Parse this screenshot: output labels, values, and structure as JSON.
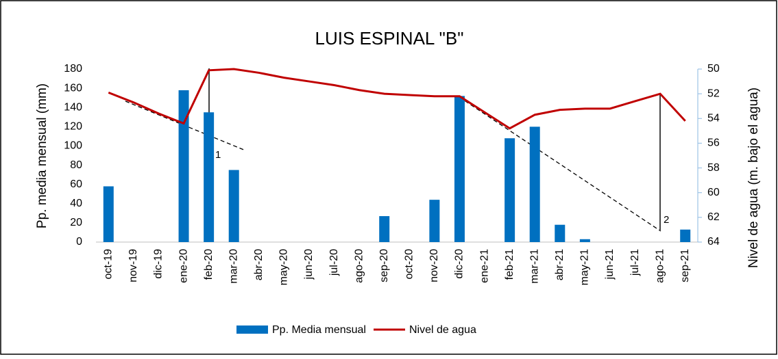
{
  "chart_data": {
    "type": "bar_line",
    "title": "LUIS ESPINAL \"B\"",
    "y_label": "Pp. media mensual (mm)",
    "y2_label": "Nivel de agua (m. bajo el agua)",
    "categories": [
      "oct-19",
      "nov-19",
      "dic-19",
      "ene-20",
      "feb-20",
      "mar-20",
      "abr-20",
      "may-20",
      "jun-20",
      "jul-20",
      "ago-20",
      "sep-20",
      "oct-20",
      "nov-20",
      "dic-20",
      "ene-21",
      "feb-21",
      "mar-21",
      "abr-21",
      "may-21",
      "jun-21",
      "jul-21",
      "ago-21",
      "sep-21"
    ],
    "series": [
      {
        "name": "Pp. Media mensual",
        "color": "#0070c0",
        "kind": "bar",
        "values": [
          58,
          0,
          0,
          158,
          135,
          75,
          0,
          0,
          0,
          0,
          0,
          27,
          0,
          44,
          152,
          0,
          108,
          120,
          18,
          3,
          0,
          0,
          0,
          13
        ]
      },
      {
        "name": "Nivel de agua",
        "color": "#c00000",
        "kind": "line",
        "axis": "y2",
        "values": [
          51.9,
          52.7,
          53.6,
          54.4,
          50.1,
          50.0,
          50.3,
          50.7,
          51.0,
          51.3,
          51.7,
          52.0,
          52.1,
          52.2,
          52.2,
          53.5,
          54.8,
          53.7,
          53.3,
          53.2,
          53.2,
          52.6,
          52.0,
          54.2
        ]
      }
    ],
    "ylim": [
      0,
      180
    ],
    "yticks": [
      0,
      20,
      40,
      60,
      80,
      100,
      120,
      140,
      160,
      180
    ],
    "y2lim": [
      64,
      50
    ],
    "y2ticks": [
      50,
      52,
      54,
      56,
      58,
      60,
      62,
      64
    ],
    "annotations": [
      "1",
      "2"
    ]
  }
}
